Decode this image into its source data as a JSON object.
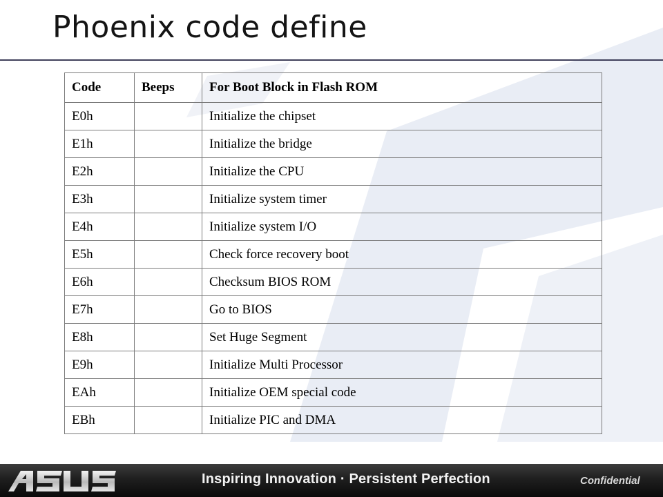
{
  "slide": {
    "title": "Phoenix code define"
  },
  "table": {
    "headers": [
      "Code",
      "Beeps",
      "For Boot Block in Flash ROM"
    ],
    "rows": [
      {
        "code": "E0h",
        "beeps": "",
        "desc": "Initialize the chipset"
      },
      {
        "code": "E1h",
        "beeps": "",
        "desc": "Initialize the bridge"
      },
      {
        "code": "E2h",
        "beeps": "",
        "desc": "Initialize the CPU"
      },
      {
        "code": "E3h",
        "beeps": "",
        "desc": "Initialize system timer"
      },
      {
        "code": "E4h",
        "beeps": "",
        "desc": "Initialize system I/O"
      },
      {
        "code": "E5h",
        "beeps": "",
        "desc": "Check force recovery boot"
      },
      {
        "code": "E6h",
        "beeps": "",
        "desc": "Checksum BIOS ROM"
      },
      {
        "code": "E7h",
        "beeps": "",
        "desc": "Go to BIOS"
      },
      {
        "code": "E8h",
        "beeps": "",
        "desc": "Set Huge Segment"
      },
      {
        "code": "E9h",
        "beeps": "",
        "desc": "Initialize Multi Processor"
      },
      {
        "code": "EAh",
        "beeps": "",
        "desc": "Initialize OEM special code"
      },
      {
        "code": "EBh",
        "beeps": "",
        "desc": "Initialize PIC and DMA"
      }
    ]
  },
  "footer": {
    "logo_text": "ASUS",
    "tagline": "Inspiring Innovation · Persistent Perfection",
    "confidential": "Confidential"
  },
  "colors": {
    "background_shape": "#e9edf5",
    "footer_bg": "#1a1a1a",
    "title_rule": "#3f3f5a",
    "table_border": "#7a7a7a"
  }
}
